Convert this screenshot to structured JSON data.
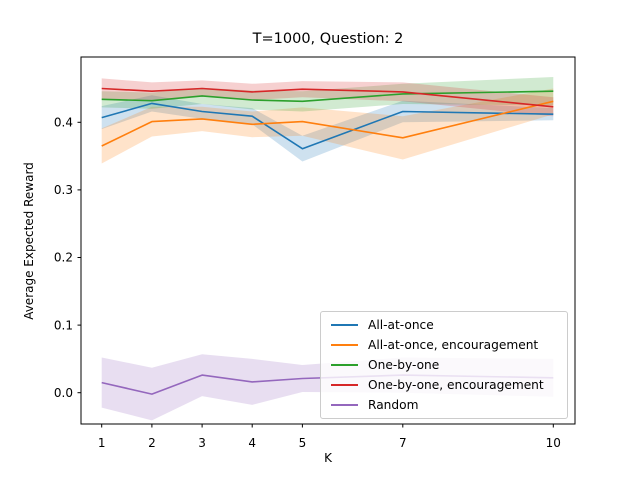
{
  "chart_data": {
    "type": "line",
    "title": "T=1000, Question: 2",
    "xlabel": "K",
    "ylabel": "Average Expected Reward",
    "x": [
      1,
      2,
      3,
      4,
      5,
      7,
      10
    ],
    "x_tick_labels": [
      "1",
      "2",
      "3",
      "4",
      "5",
      "7",
      "10"
    ],
    "y_ticks": [
      0.0,
      0.1,
      0.2,
      0.3,
      0.4
    ],
    "y_tick_labels": [
      "0.0",
      "0.1",
      "0.2",
      "0.3",
      "0.4"
    ],
    "xlim": [
      0.55,
      10.45
    ],
    "ylim": [
      -0.048,
      0.497
    ],
    "grid": false,
    "legend_position": "lower right",
    "band_opacity": 0.22,
    "series": [
      {
        "name": "All-at-once",
        "color": "#1f77b4",
        "values": [
          0.407,
          0.428,
          0.416,
          0.409,
          0.361,
          0.416,
          0.412
        ],
        "band_halfwidth": [
          0.017,
          0.012,
          0.011,
          0.012,
          0.019,
          0.016,
          0.009
        ]
      },
      {
        "name": "All-at-once, encouragement",
        "color": "#ff7f0e",
        "values": [
          0.365,
          0.401,
          0.405,
          0.397,
          0.401,
          0.377,
          0.431
        ],
        "band_halfwidth": [
          0.026,
          0.022,
          0.018,
          0.019,
          0.021,
          0.032,
          0.019
        ]
      },
      {
        "name": "One-by-one",
        "color": "#2ca02c",
        "values": [
          0.434,
          0.432,
          0.439,
          0.433,
          0.431,
          0.442,
          0.446
        ],
        "band_halfwidth": [
          0.012,
          0.012,
          0.012,
          0.014,
          0.015,
          0.015,
          0.021
        ]
      },
      {
        "name": "One-by-one, encouragement",
        "color": "#d62728",
        "values": [
          0.45,
          0.446,
          0.45,
          0.445,
          0.449,
          0.445,
          0.423
        ],
        "band_halfwidth": [
          0.015,
          0.013,
          0.012,
          0.012,
          0.012,
          0.014,
          0.014
        ]
      },
      {
        "name": "Random",
        "color": "#9467bd",
        "values": [
          0.015,
          -0.002,
          0.026,
          0.016,
          0.021,
          0.026,
          0.022
        ],
        "band_halfwidth": [
          0.037,
          0.039,
          0.031,
          0.034,
          0.02,
          0.026,
          0.028
        ]
      }
    ]
  }
}
